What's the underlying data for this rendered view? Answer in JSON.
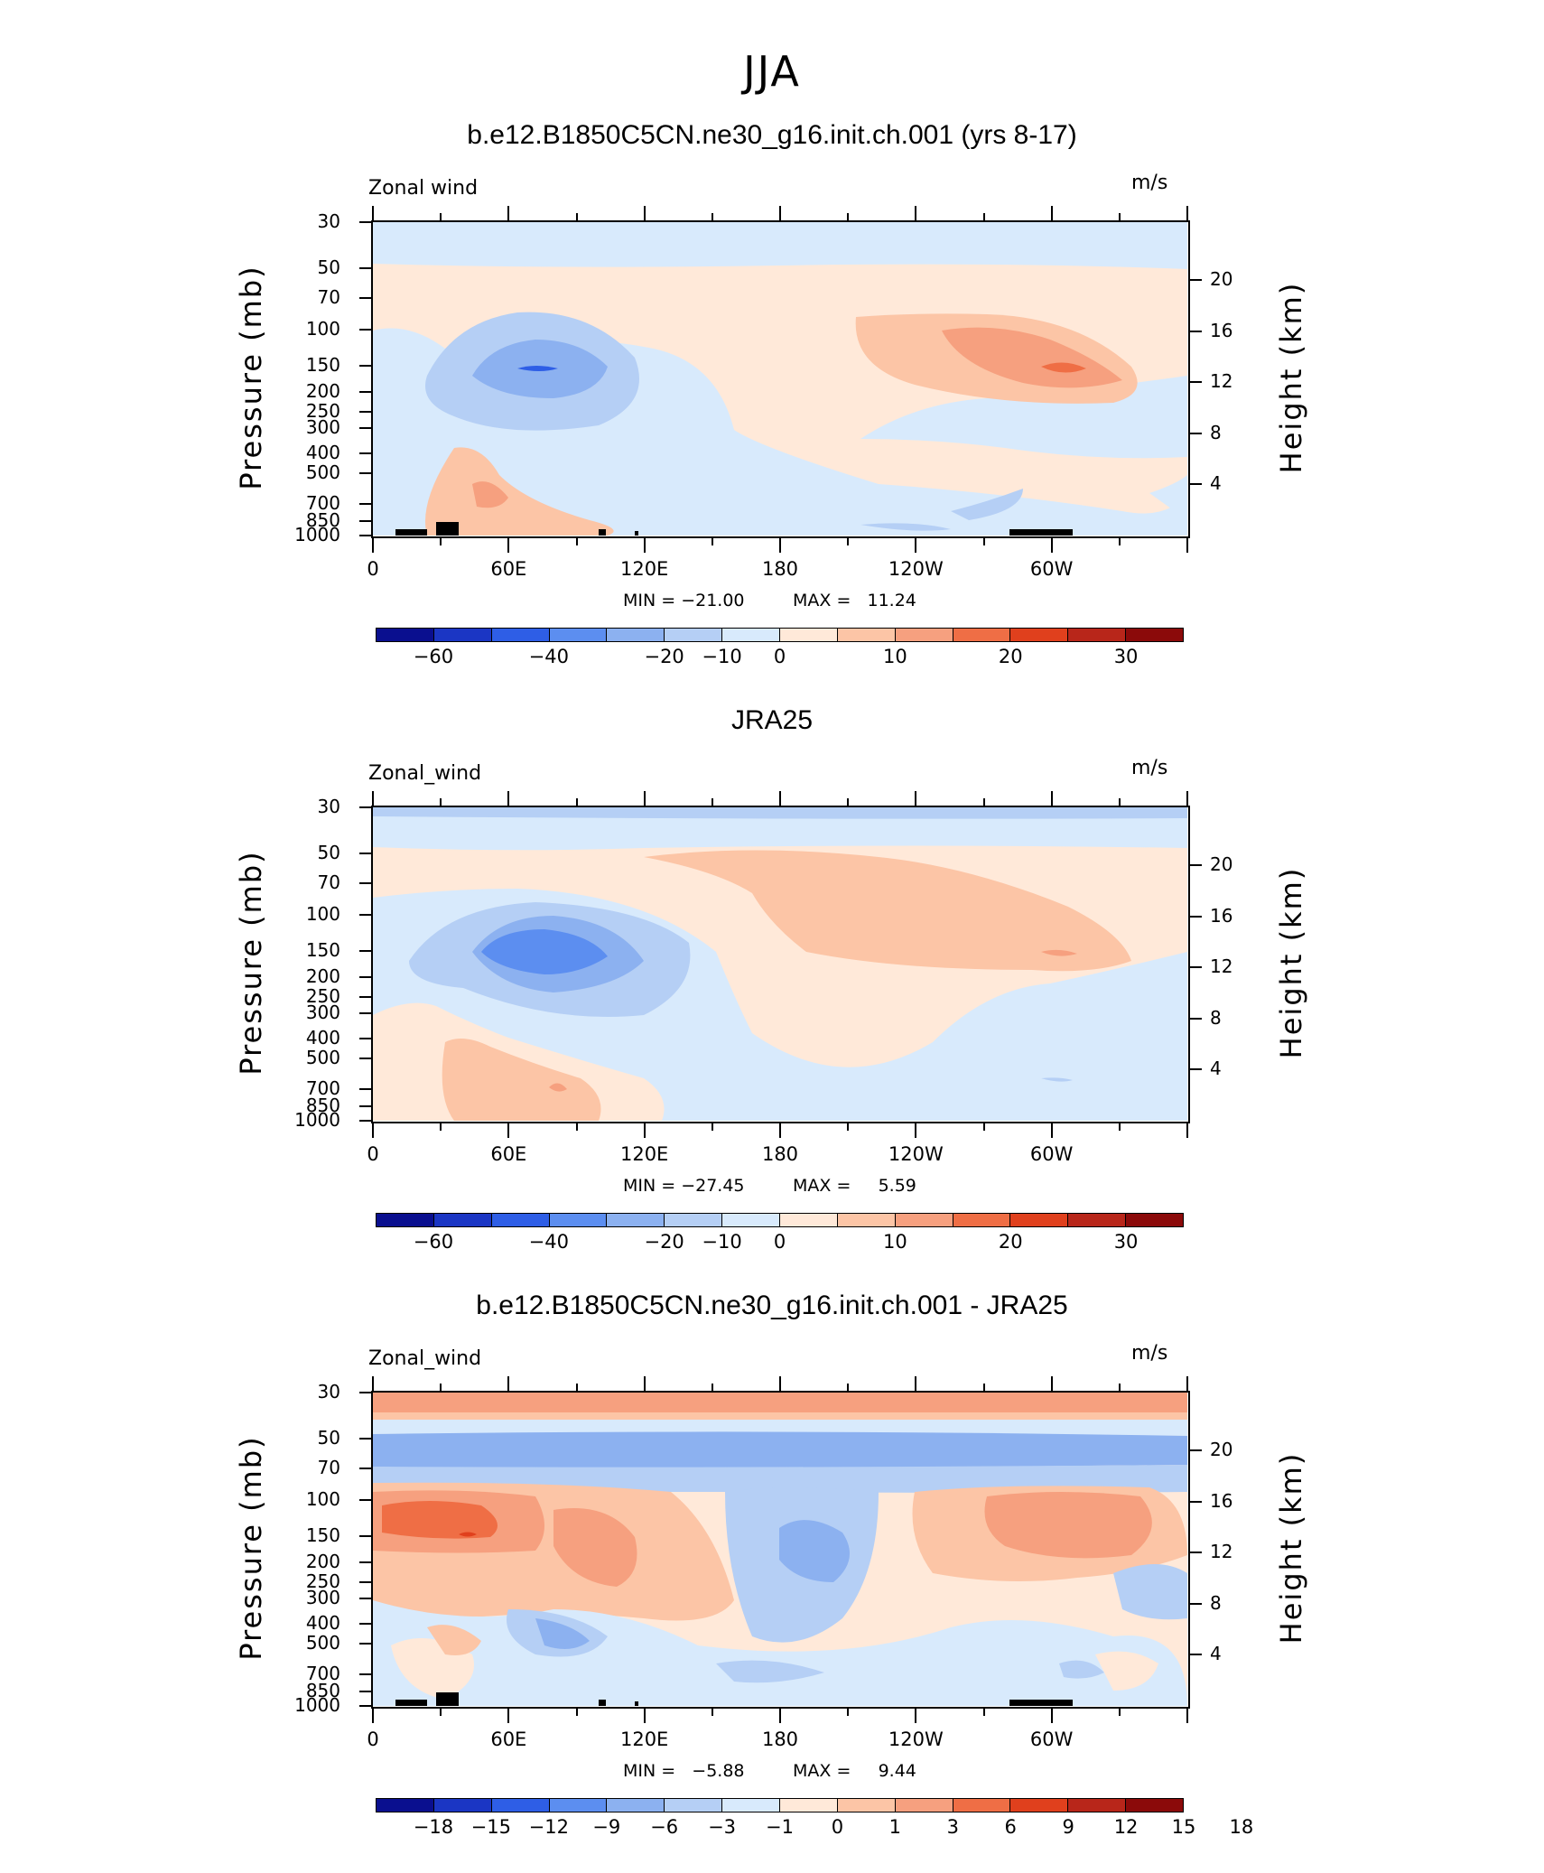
{
  "main_title": "JJA",
  "colors": {
    "pos": [
      "#ffe9d9",
      "#fcc5a6",
      "#f6a07f",
      "#ef6e45",
      "#e0401d",
      "#b8261a",
      "#8b0a0a"
    ],
    "neg": [
      "#d8eafc",
      "#b5cff5",
      "#8cb1f0",
      "#5c8ef0",
      "#2e5ee6",
      "#1b36c4",
      "#0a0f8f"
    ]
  },
  "panels": [
    {
      "title": "b.e12.B1850C5CN.ne30_g16.init.ch.001 (yrs 8-17)",
      "left_label": "Zonal wind",
      "right_label": "m/s",
      "ylabel": "Pressure (mb)",
      "ylabel_right": "Height (km)",
      "min_text": "MIN = −21.00",
      "max_text": "MAX =   11.24",
      "colorbar_labels": [
        "−60",
        "−40",
        "−20",
        "−10",
        "0",
        "10",
        "20",
        "30"
      ]
    },
    {
      "title": "JRA25",
      "left_label": "Zonal_wind",
      "right_label": "m/s",
      "ylabel": "Pressure (mb)",
      "ylabel_right": "Height (km)",
      "min_text": "MIN = −27.45",
      "max_text": "MAX =     5.59",
      "colorbar_labels": [
        "−60",
        "−40",
        "−20",
        "−10",
        "0",
        "10",
        "20",
        "30"
      ]
    },
    {
      "title": "b.e12.B1850C5CN.ne30_g16.init.ch.001 - JRA25",
      "left_label": "Zonal_wind",
      "right_label": "m/s",
      "ylabel": "Pressure (mb)",
      "ylabel_right": "Height (km)",
      "min_text": "MIN =   −5.88",
      "max_text": "MAX =     9.44",
      "colorbar_labels": [
        "−18",
        "−15",
        "−12",
        "−9",
        "−6",
        "−3",
        "−1",
        "0",
        "1",
        "3",
        "6",
        "9",
        "12",
        "15",
        "18"
      ]
    }
  ],
  "chart_data": {
    "type": "heatmap",
    "x_tick_labels": [
      "0",
      "60E",
      "120E",
      "180",
      "120W",
      "60W"
    ],
    "y_tick_labels_left": [
      "30",
      "50",
      "70",
      "100",
      "150",
      "200",
      "250",
      "300",
      "400",
      "500",
      "700",
      "850",
      "1000"
    ],
    "y_tick_labels_right": [
      "20",
      "16",
      "12",
      "8",
      "4"
    ],
    "pressure_levels_mb": [
      30,
      50,
      70,
      100,
      150,
      200,
      250,
      300,
      400,
      500,
      700,
      850,
      1000
    ],
    "height_km": [
      20,
      16,
      12,
      8,
      4
    ],
    "xlim_deg": [
      0,
      360
    ],
    "ylim_mb": [
      1000,
      30
    ],
    "y_scale": "log",
    "panels": [
      {
        "name": "b.e12.B1850C5CN.ne30_g16.init.ch.001 (yrs 8-17)",
        "min": -21.0,
        "max": 11.24,
        "contour_levels": [
          -60,
          -50,
          -40,
          -30,
          -20,
          -15,
          -10,
          -5,
          0,
          5,
          10,
          15,
          20,
          25,
          30
        ]
      },
      {
        "name": "JRA25",
        "min": -27.45,
        "max": 5.59,
        "contour_levels": [
          -60,
          -50,
          -40,
          -30,
          -20,
          -15,
          -10,
          -5,
          0,
          5,
          10,
          15,
          20,
          25,
          30
        ]
      },
      {
        "name": "b.e12.B1850C5CN.ne30_g16.init.ch.001 - JRA25",
        "min": -5.88,
        "max": 9.44,
        "contour_levels": [
          -18,
          -15,
          -12,
          -9,
          -6,
          -3,
          -1,
          0,
          1,
          3,
          6,
          9,
          12,
          15,
          18
        ]
      }
    ]
  }
}
